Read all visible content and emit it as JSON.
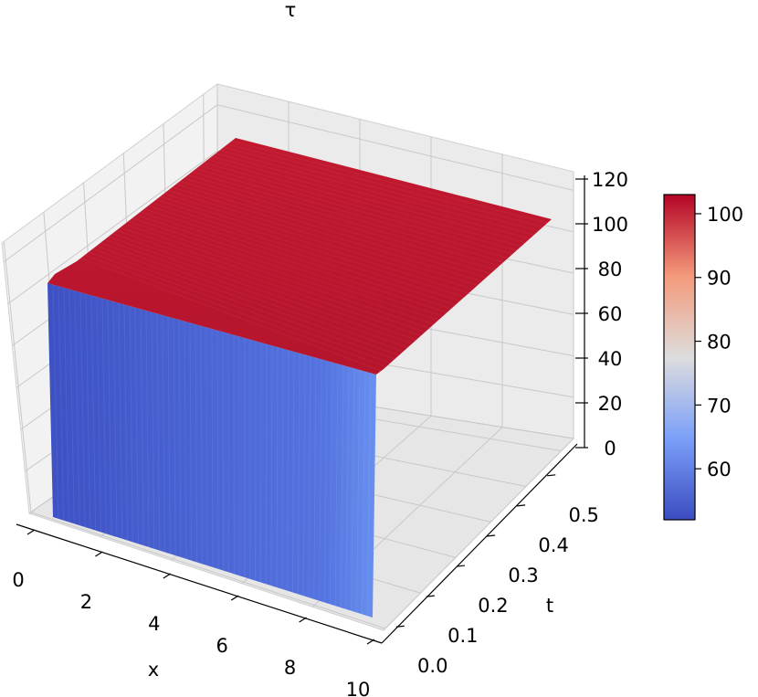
{
  "chart_data": {
    "type": "surface3d",
    "title": "τ",
    "xlabel": "x",
    "ylabel": "t",
    "zlabel": "",
    "x_ticks": [
      "0",
      "2",
      "4",
      "6",
      "8",
      "10"
    ],
    "t_ticks": [
      "0.0",
      "0.1",
      "0.2",
      "0.3",
      "0.4",
      "0.5"
    ],
    "z_ticks": [
      "0",
      "20",
      "40",
      "60",
      "80",
      "100",
      "120"
    ],
    "xlim": [
      0,
      10
    ],
    "tlim": [
      0,
      0.5
    ],
    "zlim": [
      0,
      120
    ],
    "surface": {
      "x": [
        0,
        0.3,
        10
      ],
      "t": [
        0,
        0.5
      ],
      "z_front_face_at_t0": 58,
      "z_top_plateau": 100,
      "z_edge_at_x0": 60,
      "description_values": [
        {
          "x": 0,
          "t": 0,
          "z": 60
        },
        {
          "x": 0.3,
          "t": 0,
          "z": 100
        },
        {
          "x": 10,
          "t": 0,
          "z": 100
        },
        {
          "x": 0,
          "t": 0.5,
          "z": 100
        },
        {
          "x": 10,
          "t": 0.5,
          "z": 100
        }
      ]
    },
    "colormap": "coolwarm",
    "colorbar": {
      "ticks": [
        "60",
        "70",
        "80",
        "90",
        "100"
      ],
      "min": 52,
      "max": 103,
      "placement": "right"
    },
    "grid": true
  }
}
